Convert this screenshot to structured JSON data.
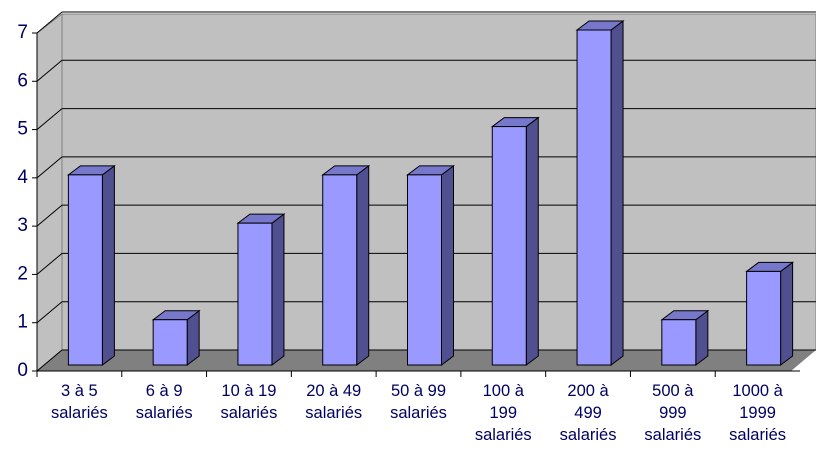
{
  "chart_data": {
    "type": "bar",
    "categories": [
      "3 à 5 salariés",
      "6 à 9 salariés",
      "10 à 19 salariés",
      "20 à 49 salariés",
      "50 à 99 salariés",
      "100 à 199 salariés",
      "200 à 499 salariés",
      "500 à 999 salariés",
      "1000 à 1999 salariés"
    ],
    "values": [
      4,
      1,
      3,
      4,
      4,
      5,
      7,
      1,
      2
    ],
    "color": "#9999ff",
    "ylim": [
      0,
      7
    ],
    "yticks": [
      0,
      1,
      2,
      3,
      4,
      5,
      6,
      7
    ],
    "grid": true
  }
}
